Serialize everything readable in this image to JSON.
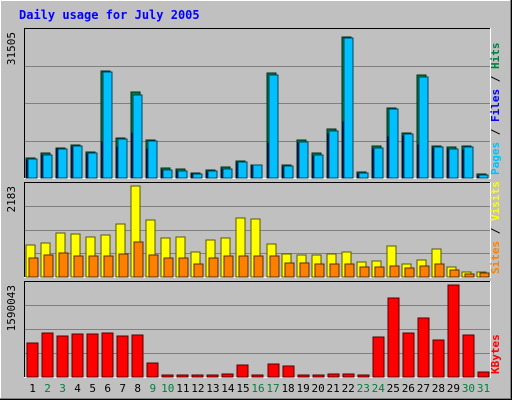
{
  "chart_data": {
    "title": "Daily usage for July 2005",
    "categories": [
      "1",
      "2",
      "3",
      "4",
      "5",
      "6",
      "7",
      "8",
      "9",
      "10",
      "11",
      "12",
      "13",
      "14",
      "15",
      "16",
      "17",
      "18",
      "19",
      "20",
      "21",
      "22",
      "23",
      "24",
      "25",
      "26",
      "27",
      "28",
      "29",
      "30",
      "31"
    ],
    "weekend_days": [
      "2",
      "3",
      "9",
      "10",
      "16",
      "17",
      "23",
      "24",
      "30",
      "31"
    ],
    "panels": [
      {
        "type": "bar",
        "ymax_label": "31505",
        "ylim": [
          0,
          31505
        ],
        "series": [
          {
            "name": "Hits",
            "color": "#008040",
            "values": [
              4300,
              5300,
              6500,
              7100,
              5600,
              23000,
              8700,
              18600,
              8100,
              2100,
              1900,
              1100,
              1800,
              2300,
              3600,
              2900,
              22700,
              2700,
              8100,
              5300,
              10500,
              30500,
              1300,
              6800,
              15200,
              9800,
              22300,
              6900,
              6600,
              6800,
              800
            ]
          },
          {
            "name": "Files",
            "color": "#0000ff",
            "values": [
              3900,
              4900,
              6200,
              6700,
              5200,
              7800,
              6600,
              9700,
              6300,
              1700,
              1500,
              800,
              1400,
              2000,
              3200,
              2500,
              7500,
              2300,
              7500,
              4800,
              9500,
              12000,
              900,
              6300,
              8800,
              9000,
              7200,
              6400,
              6200,
              6000,
              500
            ]
          },
          {
            "name": "Pages",
            "color": "#00c0ff",
            "values": [
              4100,
              5000,
              6300,
              6800,
              5400,
              22800,
              8400,
              18000,
              7900,
              1800,
              1600,
              900,
              1600,
              2000,
              3400,
              2700,
              22300,
              2500,
              7800,
              5000,
              10200,
              30300,
              1100,
              6500,
              14800,
              9500,
              21800,
              6700,
              6300,
              6600,
              600
            ]
          }
        ]
      },
      {
        "type": "bar",
        "ymax_label": "2183",
        "ylim": [
          0,
          2183
        ],
        "series": [
          {
            "name": "Visits",
            "color": "#ffff00",
            "values": [
              760,
              820,
              1060,
              1020,
              960,
              1000,
              1260,
              2183,
              1360,
              930,
              960,
              600,
              880,
              930,
              1420,
              1400,
              790,
              560,
              520,
              530,
              560,
              590,
              370,
              390,
              750,
              310,
              400,
              660,
              230,
              130,
              130
            ]
          },
          {
            "name": "Sites",
            "color": "#ff8000",
            "values": [
              460,
              530,
              570,
              500,
              500,
              500,
              540,
              830,
              520,
              450,
              450,
              320,
              450,
              500,
              500,
              500,
              500,
              340,
              340,
              300,
              300,
              300,
              240,
              250,
              260,
              220,
              260,
              300,
              170,
              70,
              90
            ]
          }
        ]
      },
      {
        "type": "bar",
        "ymax_label": "1590043",
        "ylim": [
          0,
          1590043
        ],
        "series": [
          {
            "name": "KBytes",
            "color": "#ff0000",
            "values": [
              580000,
              760000,
              710000,
              740000,
              740000,
              760000,
              700000,
              730000,
              240000,
              30000,
              30000,
              30000,
              30000,
              50000,
              210000,
              40000,
              230000,
              190000,
              40000,
              40000,
              50000,
              50000,
              40000,
              690000,
              1370000,
              760000,
              1020000,
              640000,
              1590043,
              720000,
              80000
            ]
          }
        ]
      }
    ]
  }
}
